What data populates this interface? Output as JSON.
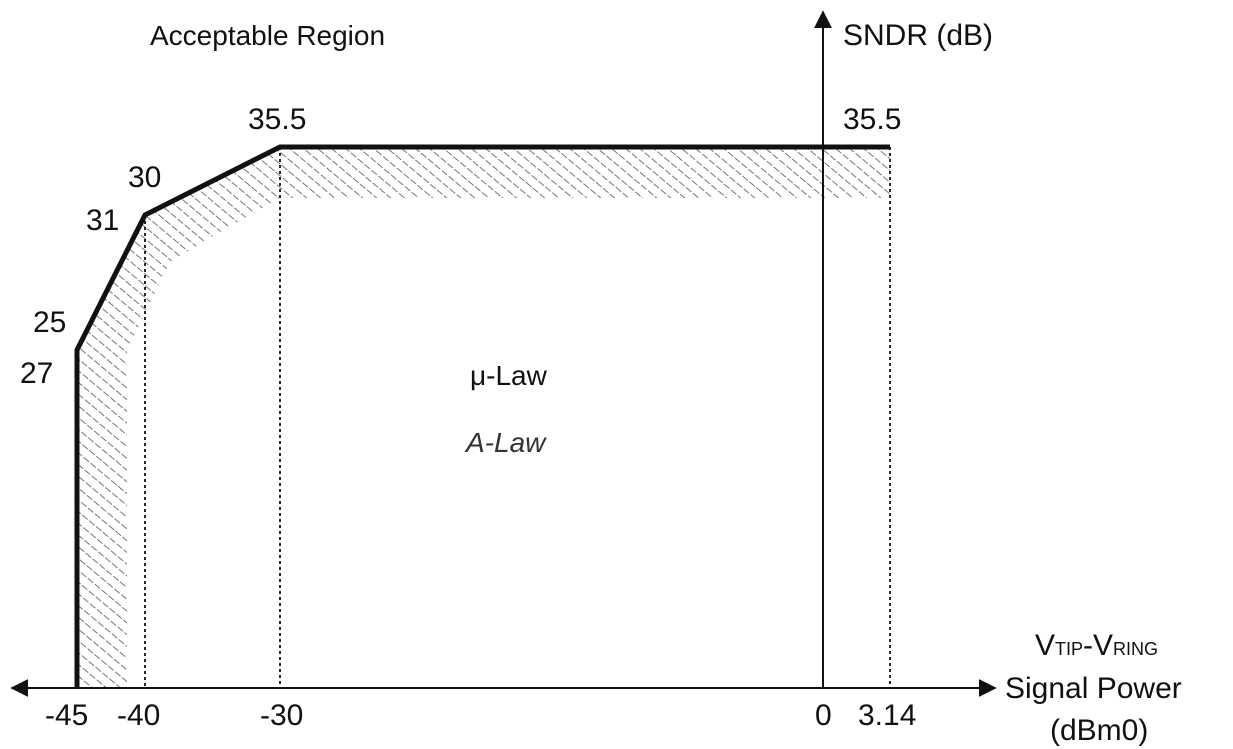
{
  "chart_data": {
    "type": "line",
    "title": "Acceptable Region",
    "ylabel": "SNDR (dB)",
    "xlabel": {
      "line1_v1": "V",
      "line1_sub1": "TIP",
      "line1_sep": "-V",
      "line1_sub2": "RING",
      "line2": "Signal Power",
      "line3": "(dBm0)"
    },
    "x_ticks": [
      "-45",
      "-40",
      "-30",
      "0",
      "3.14"
    ],
    "x_tick_values": [
      -45,
      -40,
      -30,
      0,
      3.14
    ],
    "series": [
      {
        "name": "μ-Law",
        "x": [
          -45,
          -45,
          -40,
          -30,
          3.14
        ],
        "y": [
          0,
          25,
          30,
          35.5,
          35.5
        ]
      },
      {
        "name": "A-Law",
        "x": [
          -45,
          -45,
          -40,
          -30,
          3.14
        ],
        "y": [
          0,
          27,
          31,
          35.5,
          35.5
        ]
      }
    ],
    "point_labels": [
      {
        "text": "25",
        "x": -45,
        "y": 25
      },
      {
        "text": "27",
        "x": -45,
        "y": 27
      },
      {
        "text": "30",
        "x": -40,
        "y": 30
      },
      {
        "text": "31",
        "x": -40,
        "y": 31
      },
      {
        "text": "35.5",
        "x": -30,
        "y": 35.5
      },
      {
        "text": "35.5",
        "x": 3.14,
        "y": 35.5
      }
    ],
    "region_labels": [
      "μ-Law",
      "A-Law"
    ],
    "colors": {
      "line": "#111111",
      "hatch": "#555555",
      "dotted": "#111111"
    }
  }
}
